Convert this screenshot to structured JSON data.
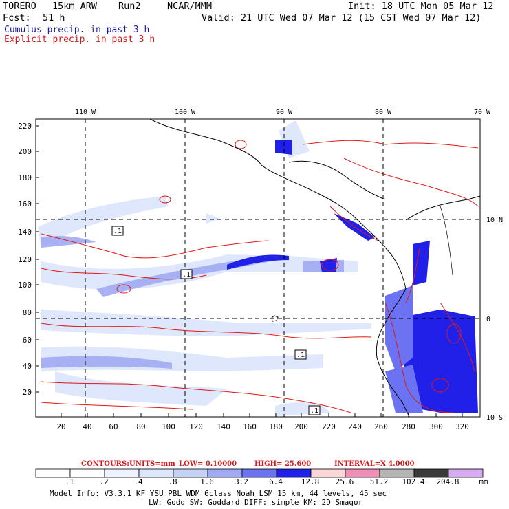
{
  "header": {
    "model": "TORERO",
    "resolution": "15km ARW",
    "run": "Run2",
    "org": "NCAR/MMM",
    "init": "Init: 18 UTC Mon 05 Mar 12",
    "fcst_label": "Fcst:",
    "fcst_value": "51 h",
    "valid": "Valid: 21 UTC Wed 07 Mar 12 (15 CST Wed 07 Mar 12)"
  },
  "legend": {
    "cumulus": "Cumulus precip. in past 3 h",
    "explicit": "Explicit precip. in past 3 h"
  },
  "map": {
    "top_lon_labels": [
      "110 W",
      "100 W",
      "90 W",
      "80 W",
      "70 W"
    ],
    "right_lat_labels": [
      "10 N",
      "0",
      "10 S"
    ],
    "y_ticks": [
      "220",
      "200",
      "180",
      "160",
      "140",
      "120",
      "100",
      "80",
      "60",
      "40",
      "20"
    ],
    "x_ticks": [
      "20",
      "40",
      "60",
      "80",
      "100",
      "120",
      "140",
      "160",
      "180",
      "200",
      "220",
      "240",
      "260",
      "280",
      "300",
      "320"
    ],
    "contour_labels": [
      ".1",
      ".1",
      ".1",
      ".1"
    ]
  },
  "contours": {
    "label": "CONTOURS:",
    "units": "UNITS=mm",
    "low": "LOW= 0.10000",
    "high": "HIGH= 25.600",
    "interval": "INTERVAL=X 4.0000"
  },
  "colorbar": {
    "labels": [
      ".1",
      ".2",
      ".4",
      ".8",
      "1.6",
      "3.2",
      "6.4",
      "12.8",
      "25.6",
      "51.2",
      "102.4",
      "204.8"
    ],
    "unit": "mm",
    "colors": [
      "#ffffff",
      "#ffffff",
      "#eef2ff",
      "#dde6fb",
      "#c4d2f5",
      "#a0aaf2",
      "#6c73f2",
      "#2020e8",
      "#fbd6d6",
      "#f08fb6",
      "#b4b4b4",
      "#3a3a3a",
      "#d5aaf0"
    ]
  },
  "footer": {
    "line1": "Model Info: V3.3.1   KF    YSU PBL  WDM 6class  Noah LSM  15 km,   44 levels,   45 sec",
    "line2": "LW: Godd SW: Goddard DIFF: simple KM: 2D Smagor"
  }
}
